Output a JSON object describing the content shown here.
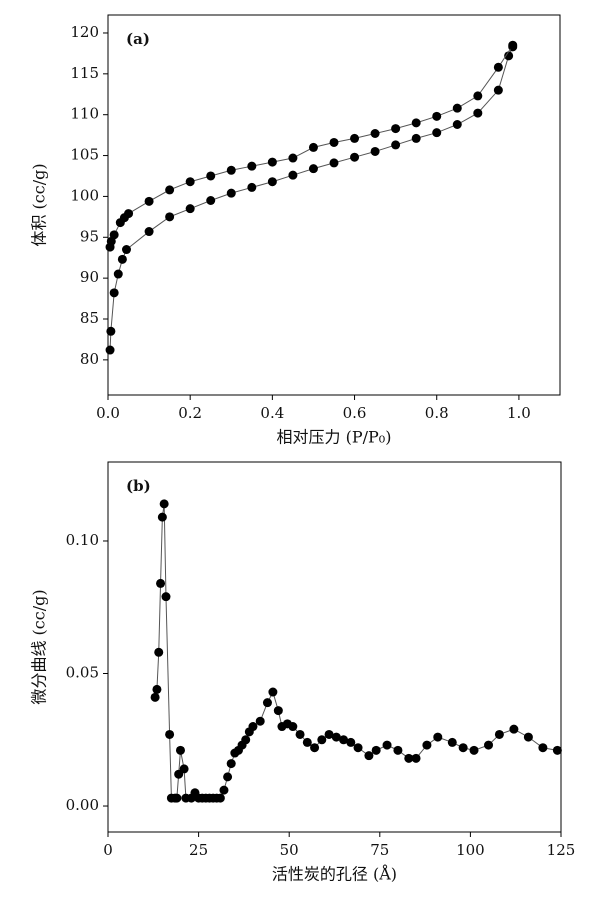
{
  "chart_data": [
    {
      "type": "scatter",
      "panel": "(a)",
      "xlabel": "相对压力 (P/P₀)",
      "ylabel": "体积 (cc/g)",
      "xlim": [
        0,
        1.1
      ],
      "ylim": [
        75.7,
        122.2
      ],
      "xticks": [
        {
          "value": 0,
          "label": "0.0"
        },
        {
          "value": 0.2,
          "label": "0.2"
        },
        {
          "value": 0.4,
          "label": "0.4"
        },
        {
          "value": 0.6,
          "label": "0.6"
        },
        {
          "value": 0.8,
          "label": "0.8"
        },
        {
          "value": 1,
          "label": "1.0"
        }
      ],
      "yticks": [
        80,
        85,
        90,
        95,
        100,
        105,
        110,
        115,
        120
      ],
      "series": [
        {
          "color": "#000000",
          "x": [
            0.005,
            0.007,
            0.015,
            0.025,
            0.035,
            0.045,
            0.1,
            0.15,
            0.2,
            0.25,
            0.3,
            0.35,
            0.4,
            0.45,
            0.5,
            0.55,
            0.6,
            0.65,
            0.7,
            0.75,
            0.8,
            0.85,
            0.9,
            0.95,
            0.975,
            0.985
          ],
          "values": [
            81.2,
            83.5,
            88.2,
            90.5,
            92.3,
            93.5,
            95.7,
            97.5,
            98.5,
            99.5,
            100.4,
            101.1,
            101.8,
            102.6,
            103.4,
            104.1,
            104.8,
            105.5,
            106.3,
            107.1,
            107.8,
            108.8,
            110.2,
            113,
            117.2,
            118.3
          ]
        },
        {
          "color": "#000000",
          "x": [
            0.985,
            0.95,
            0.9,
            0.85,
            0.8,
            0.75,
            0.7,
            0.65,
            0.6,
            0.55,
            0.5,
            0.45,
            0.4,
            0.35,
            0.3,
            0.25,
            0.2,
            0.15,
            0.1,
            0.05,
            0.04,
            0.03,
            0.015,
            0.008,
            0.005
          ],
          "values": [
            118.5,
            115.8,
            112.3,
            110.8,
            109.8,
            109,
            108.3,
            107.7,
            107.1,
            106.6,
            106,
            104.7,
            104.2,
            103.7,
            103.2,
            102.5,
            101.8,
            100.8,
            99.4,
            97.9,
            97.4,
            96.8,
            95.3,
            94.5,
            93.8
          ]
        }
      ]
    },
    {
      "type": "scatter",
      "panel": "(b)",
      "xlabel": "活性炭的孔径 (Å)",
      "ylabel": "微分曲线 (cc/g)",
      "xlim": [
        0,
        125
      ],
      "ylim": [
        -0.0098,
        0.1298
      ],
      "xticks": [
        0,
        25,
        50,
        75,
        100,
        125
      ],
      "yticks": [
        {
          "value": 0,
          "label": "0.00"
        },
        {
          "value": 0.05,
          "label": "0.05"
        },
        {
          "value": 0.1,
          "label": "0.10"
        }
      ],
      "series": [
        {
          "color": "#000000",
          "x": [
            13,
            13.5,
            14,
            14.5,
            15,
            15.5,
            16,
            17,
            17.5,
            18.5,
            19,
            19.5,
            20,
            21,
            21.5,
            23,
            24,
            25,
            26,
            27,
            28,
            29,
            30,
            31,
            32,
            33,
            34,
            35,
            36,
            37,
            38,
            39,
            40,
            42,
            44,
            45.5,
            47,
            48,
            49.5,
            51,
            53,
            55,
            57,
            59,
            61,
            63,
            65,
            67,
            69,
            72,
            74,
            77,
            80,
            83,
            85,
            88,
            91,
            95,
            98,
            101,
            105,
            108,
            112,
            116,
            120,
            124
          ],
          "values": [
            0.041,
            0.044,
            0.058,
            0.084,
            0.109,
            0.114,
            0.079,
            0.027,
            0.003,
            0.003,
            0.003,
            0.012,
            0.021,
            0.014,
            0.003,
            0.003,
            0.005,
            0.003,
            0.003,
            0.003,
            0.003,
            0.003,
            0.003,
            0.003,
            0.006,
            0.011,
            0.016,
            0.02,
            0.021,
            0.023,
            0.025,
            0.028,
            0.03,
            0.032,
            0.039,
            0.043,
            0.036,
            0.03,
            0.031,
            0.03,
            0.027,
            0.024,
            0.022,
            0.025,
            0.027,
            0.026,
            0.025,
            0.024,
            0.022,
            0.019,
            0.021,
            0.023,
            0.021,
            0.018,
            0.018,
            0.023,
            0.026,
            0.024,
            0.022,
            0.021,
            0.023,
            0.027,
            0.029,
            0.026,
            0.022,
            0.021
          ]
        }
      ]
    }
  ]
}
